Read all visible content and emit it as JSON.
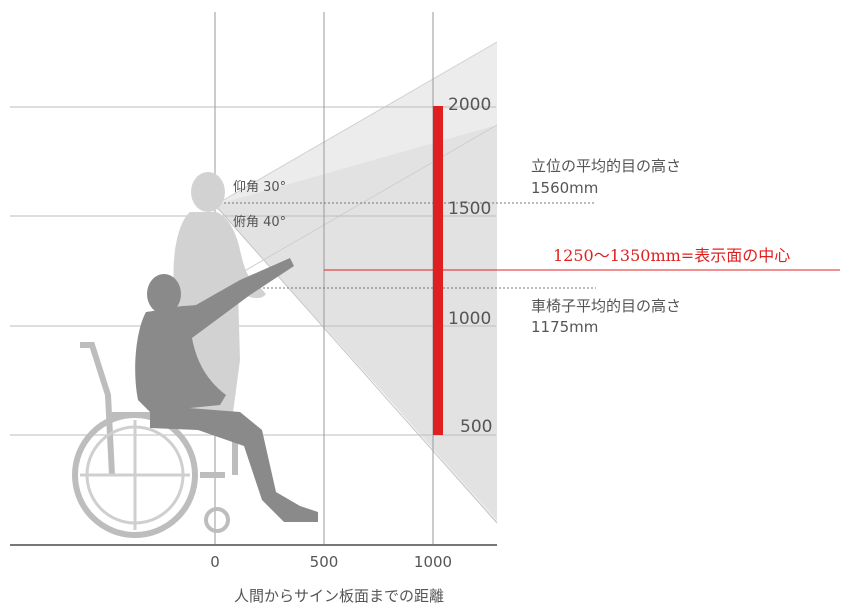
{
  "axis": {
    "x_ticks": [
      "0",
      "500",
      "1000"
    ],
    "y_ticks": [
      "2000",
      "1500",
      "1000",
      "500"
    ],
    "x_caption": "人間からサイン板面までの距離"
  },
  "angles": {
    "elevation": "仰角 30°",
    "depression": "俯角 40°"
  },
  "annotations": {
    "standing_title": "立位の平均的目の高さ",
    "standing_value": "1560mm",
    "wheelchair_title": "車椅子平均的目の高さ",
    "wheelchair_value": "1175mm",
    "center_range": "1250～1350mm=表示面の中心"
  },
  "colors": {
    "accent": "#e02020",
    "grid": "#bbbbbb",
    "cone": "#e6e6e6",
    "person_standing": "#d2d2d2",
    "person_wheelchair": "#8a8a8a"
  },
  "icons": {
    "standing": "standing-person-icon",
    "wheelchair": "wheelchair-user-icon"
  }
}
